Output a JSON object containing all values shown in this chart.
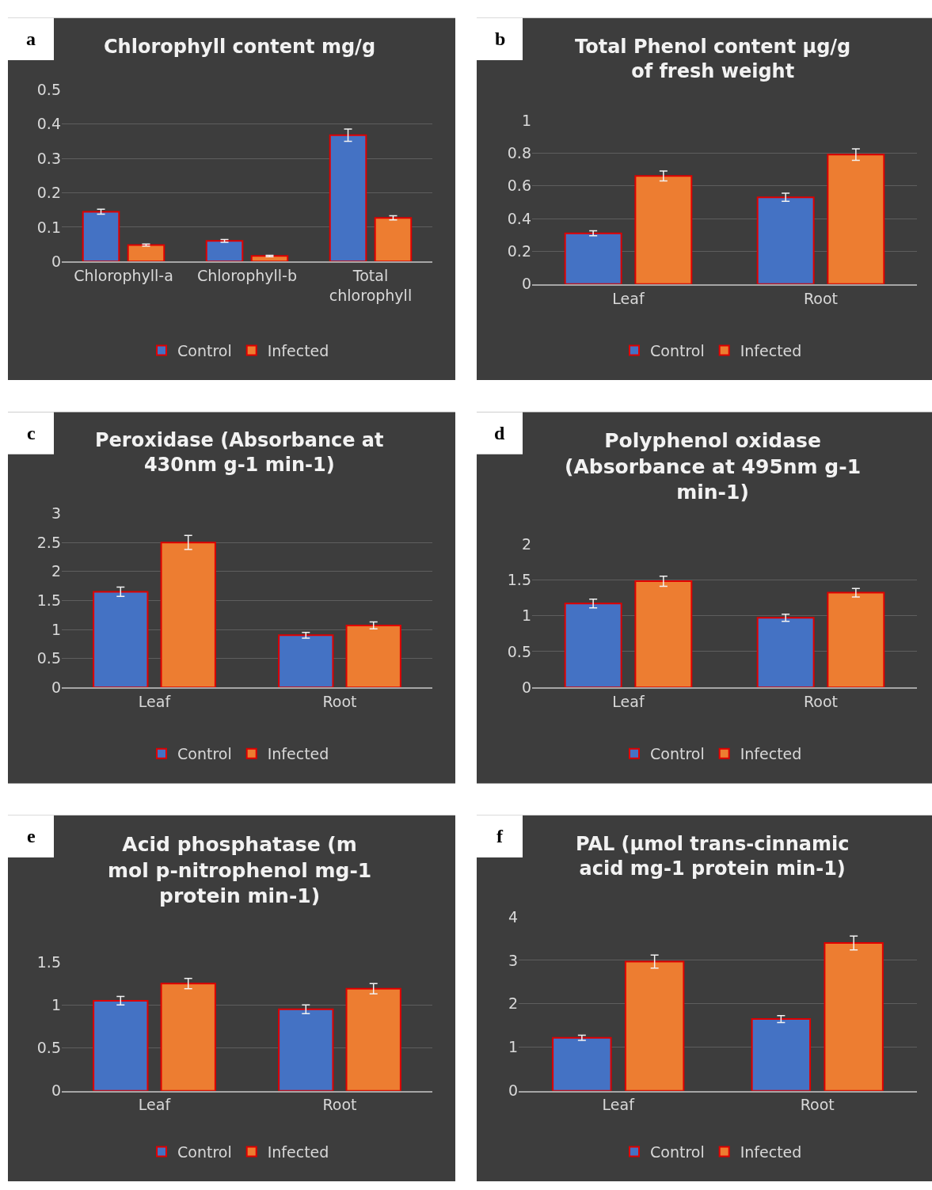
{
  "chart_data": [
    {
      "type": "bar",
      "title": "Chlorophyll content mg/g",
      "annotations": [
        "a"
      ],
      "categories": [
        "Chlorophyll-a",
        "Chlorophyll-b",
        "Total\nchlorophyll"
      ],
      "series": [
        {
          "name": "Control",
          "color": "#4472c4",
          "values": [
            0.145,
            0.06,
            0.368
          ],
          "errors": [
            0.007,
            0.004,
            0.018
          ]
        },
        {
          "name": "Infected",
          "color": "#ed7d31",
          "values": [
            0.048,
            0.016,
            0.127
          ],
          "errors": [
            0.003,
            0.002,
            0.006
          ]
        }
      ],
      "ylim": [
        0,
        0.5
      ],
      "yticks": [
        0,
        0.1,
        0.2,
        0.3,
        0.4,
        0.5
      ],
      "grid": "y",
      "legend": "bottom"
    },
    {
      "type": "bar",
      "title": "Total Phenol content µg/g\nof fresh weight",
      "annotations": [
        "b"
      ],
      "categories": [
        "Leaf",
        "Root"
      ],
      "series": [
        {
          "name": "Control",
          "color": "#4472c4",
          "values": [
            0.31,
            0.53
          ],
          "errors": [
            0.015,
            0.025
          ]
        },
        {
          "name": "Infected",
          "color": "#ed7d31",
          "values": [
            0.66,
            0.79
          ],
          "errors": [
            0.03,
            0.035
          ]
        }
      ],
      "ylim": [
        0,
        1
      ],
      "yticks": [
        0,
        0.2,
        0.4,
        0.6,
        0.8,
        1
      ],
      "grid": "y",
      "legend": "bottom"
    },
    {
      "type": "bar",
      "title": "Peroxidase (Absorbance at\n430nm g-1 min-1)",
      "annotations": [
        "c"
      ],
      "categories": [
        "Leaf",
        "Root"
      ],
      "series": [
        {
          "name": "Control",
          "color": "#4472c4",
          "values": [
            1.65,
            0.9
          ],
          "errors": [
            0.08,
            0.05
          ]
        },
        {
          "name": "Infected",
          "color": "#ed7d31",
          "values": [
            2.5,
            1.07
          ],
          "errors": [
            0.12,
            0.06
          ]
        }
      ],
      "ylim": [
        0,
        3
      ],
      "yticks": [
        0,
        0.5,
        1,
        1.5,
        2,
        2.5,
        3
      ],
      "grid": "y",
      "legend": "bottom"
    },
    {
      "type": "bar",
      "title": "Polyphenol oxidase\n(Absorbance at 495nm g-1\nmin-1)",
      "annotations": [
        "d"
      ],
      "categories": [
        "Leaf",
        "Root"
      ],
      "series": [
        {
          "name": "Control",
          "color": "#4472c4",
          "values": [
            1.17,
            0.97
          ],
          "errors": [
            0.06,
            0.05
          ]
        },
        {
          "name": "Infected",
          "color": "#ed7d31",
          "values": [
            1.48,
            1.32
          ],
          "errors": [
            0.07,
            0.06
          ]
        }
      ],
      "ylim": [
        0,
        2
      ],
      "yticks": [
        0,
        0.5,
        1,
        1.5,
        2
      ],
      "grid": "y",
      "legend": "bottom"
    },
    {
      "type": "bar",
      "title": "Acid phosphatase (m\nmol p-nitrophenol mg-1\nprotein min-1)",
      "annotations": [
        "e"
      ],
      "categories": [
        "Leaf",
        "Root"
      ],
      "series": [
        {
          "name": "Control",
          "color": "#4472c4",
          "values": [
            1.05,
            0.95
          ],
          "errors": [
            0.05,
            0.05
          ]
        },
        {
          "name": "Infected",
          "color": "#ed7d31",
          "values": [
            1.25,
            1.19
          ],
          "errors": [
            0.06,
            0.06
          ]
        }
      ],
      "ylim": [
        0,
        1.5
      ],
      "yticks": [
        0,
        0.5,
        1,
        1.5
      ],
      "grid": "y",
      "legend": "bottom"
    },
    {
      "type": "bar",
      "title": "PAL (µmol trans-cinnamic\nacid mg-1 protein min-1)",
      "annotations": [
        "f"
      ],
      "categories": [
        "Leaf",
        "Root"
      ],
      "series": [
        {
          "name": "Control",
          "color": "#4472c4",
          "values": [
            1.22,
            1.65
          ],
          "errors": [
            0.06,
            0.08
          ]
        },
        {
          "name": "Infected",
          "color": "#ed7d31",
          "values": [
            2.97,
            3.4
          ],
          "errors": [
            0.15,
            0.16
          ]
        }
      ],
      "ylim": [
        0,
        4
      ],
      "yticks": [
        0,
        1,
        2,
        3,
        4
      ],
      "grid": "y",
      "legend": "bottom"
    }
  ]
}
